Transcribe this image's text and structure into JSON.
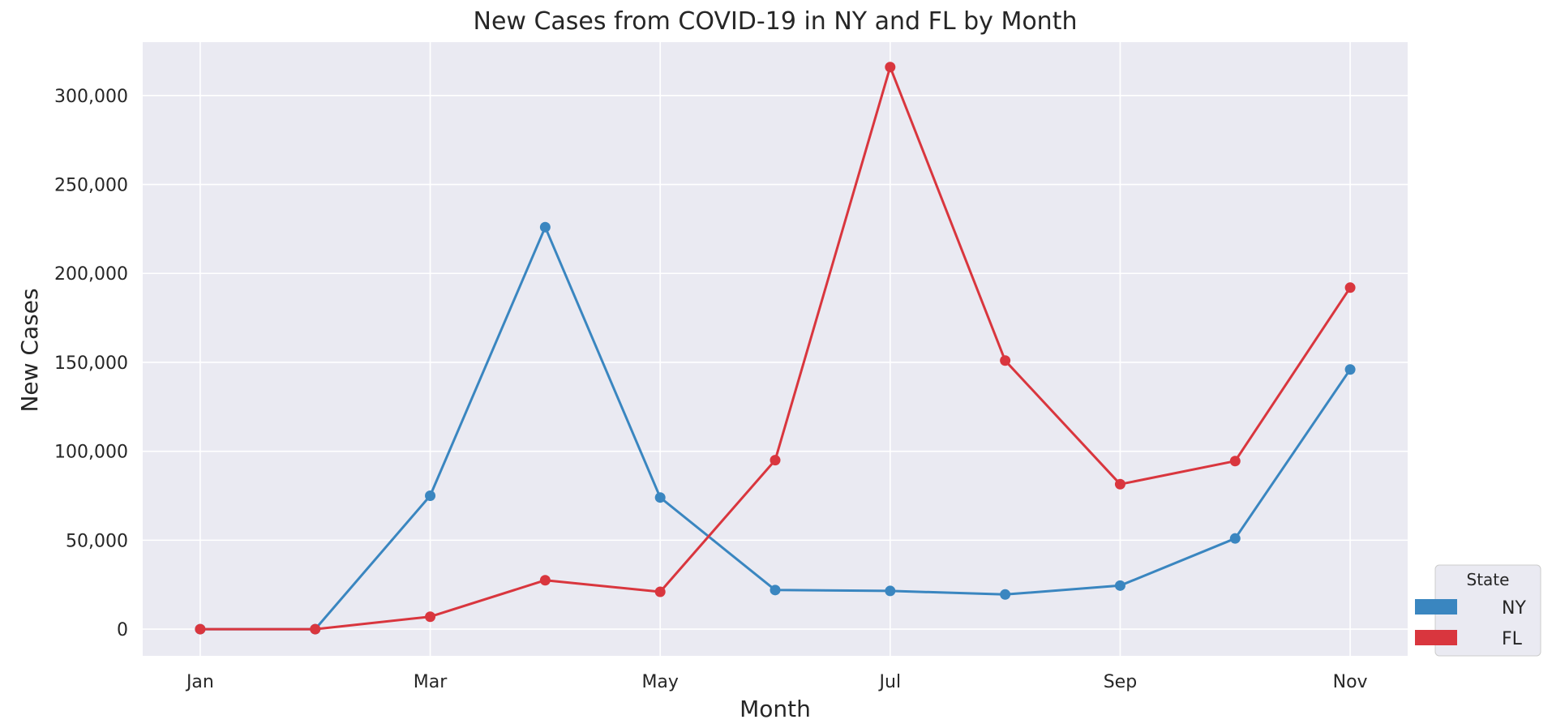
{
  "chart_data": {
    "type": "line",
    "title": "New Cases from COVID-19 in NY and FL by Month",
    "xlabel": "Month",
    "ylabel": "New Cases",
    "x": [
      1,
      2,
      3,
      4,
      5,
      6,
      7,
      8,
      9,
      10,
      11
    ],
    "xticks": [
      1,
      3,
      5,
      7,
      9,
      11
    ],
    "xtick_labels": [
      "Jan",
      "Mar",
      "May",
      "Jul",
      "Sep",
      "Nov"
    ],
    "xlim": [
      0.5,
      11.5
    ],
    "ylim": [
      -15000,
      330000
    ],
    "yticks": [
      0,
      50000,
      100000,
      150000,
      200000,
      250000,
      300000
    ],
    "ytick_labels": [
      "0",
      "50,000",
      "100,000",
      "150,000",
      "200,000",
      "250,000",
      "300,000"
    ],
    "grid": true,
    "legend": {
      "title": "State",
      "placement": "lower-right-outside"
    },
    "series": [
      {
        "name": "NY",
        "color": "#3a86c0",
        "values": [
          0,
          0,
          75000,
          226000,
          74000,
          22000,
          21500,
          19500,
          24500,
          51000,
          146000
        ]
      },
      {
        "name": "FL",
        "color": "#d9363e",
        "values": [
          0,
          0,
          7000,
          27500,
          21000,
          95000,
          316000,
          151000,
          81500,
          94500,
          192000
        ]
      }
    ]
  }
}
